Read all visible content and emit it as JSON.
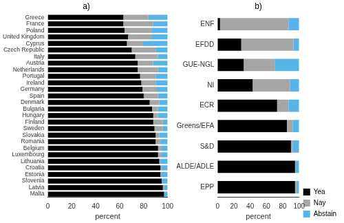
{
  "chart_data": [
    {
      "type": "bar",
      "title": "a)",
      "orientation": "horizontal",
      "stacked": true,
      "grid": false,
      "x_label": "percent",
      "xlim": [
        0,
        100
      ],
      "xticks": [
        0,
        20,
        40,
        60,
        80,
        100
      ],
      "categories": [
        "Greece",
        "France",
        "Poland",
        "United Kingdom",
        "Cyprus",
        "Czech Republic",
        "Italy",
        "Austria",
        "Netherlands",
        "Portugal",
        "Ireland",
        "Germany",
        "Spain",
        "Denmark",
        "Bulgaria",
        "Hungary",
        "Finland",
        "Sweden",
        "Slovakia",
        "Romania",
        "Belgium",
        "Luxembourg",
        "Lithuania",
        "Croatia",
        "Estonia",
        "Slovenia",
        "Latvia",
        "Malta"
      ],
      "series": [
        {
          "name": "Yea",
          "color": "#000000",
          "values": [
            63,
            63,
            64,
            67,
            66,
            70,
            73,
            75,
            75,
            77,
            78,
            79,
            80,
            85,
            87,
            88,
            88,
            89,
            90,
            90,
            92,
            92,
            93,
            94,
            94,
            95,
            96,
            97
          ]
        },
        {
          "name": "Nay",
          "color": "#a6a6a6",
          "values": [
            21,
            25,
            23,
            20,
            13,
            20,
            19,
            13,
            17,
            13,
            12,
            12,
            12,
            8,
            5,
            4,
            8,
            7,
            3,
            4,
            3,
            3,
            1,
            1,
            1,
            0,
            1,
            0
          ]
        },
        {
          "name": "Abstain",
          "color": "#56b4e9",
          "values": [
            16,
            12,
            13,
            13,
            21,
            10,
            8,
            12,
            8,
            10,
            10,
            9,
            8,
            7,
            8,
            8,
            4,
            4,
            7,
            6,
            5,
            5,
            6,
            5,
            5,
            5,
            3,
            3
          ]
        }
      ]
    },
    {
      "type": "bar",
      "title": "b)",
      "orientation": "horizontal",
      "stacked": true,
      "grid": false,
      "x_label": "percent",
      "xlim": [
        0,
        100
      ],
      "xticks": [
        0,
        20,
        40,
        60,
        80,
        100
      ],
      "legend": "lower right",
      "categories": [
        "ENF",
        "EFDD",
        "GUE-NGL",
        "NI",
        "ECR",
        "Greens/EFA",
        "S&D",
        "ALDE/ADLE",
        "EPP"
      ],
      "series": [
        {
          "name": "Yea",
          "color": "#000000",
          "values": [
            3,
            29,
            32,
            43,
            73,
            85,
            90,
            95,
            95
          ]
        },
        {
          "name": "Nay",
          "color": "#a6a6a6",
          "values": [
            84,
            64,
            38,
            46,
            14,
            7,
            2,
            1,
            2
          ]
        },
        {
          "name": "Abstain",
          "color": "#56b4e9",
          "values": [
            13,
            7,
            30,
            11,
            13,
            8,
            8,
            4,
            3
          ]
        }
      ]
    }
  ]
}
